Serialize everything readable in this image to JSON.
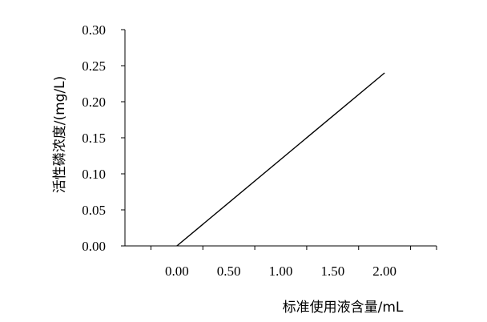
{
  "chart_data": {
    "type": "line",
    "xlabel": "标准使用液含量/mL",
    "ylabel": "活性磷浓度/(mg/L)",
    "xlim": [
      -0.5,
      2.5
    ],
    "ylim": [
      0,
      0.3
    ],
    "x_ticks": [
      0,
      0.5,
      1,
      1.5,
      2
    ],
    "x_tick_labels": [
      "0.00",
      "0.50",
      "1.00",
      "1.50",
      "2.00"
    ],
    "y_ticks": [
      0,
      0.05,
      0.1,
      0.15,
      0.2,
      0.25,
      0.3
    ],
    "y_tick_labels": [
      "0.00",
      "0.05",
      "0.10",
      "0.15",
      "0.20",
      "0.25",
      "0.30"
    ],
    "grid": false,
    "series": [
      {
        "x": [
          0.0,
          2.0
        ],
        "y": [
          0.0,
          0.24
        ]
      }
    ]
  }
}
